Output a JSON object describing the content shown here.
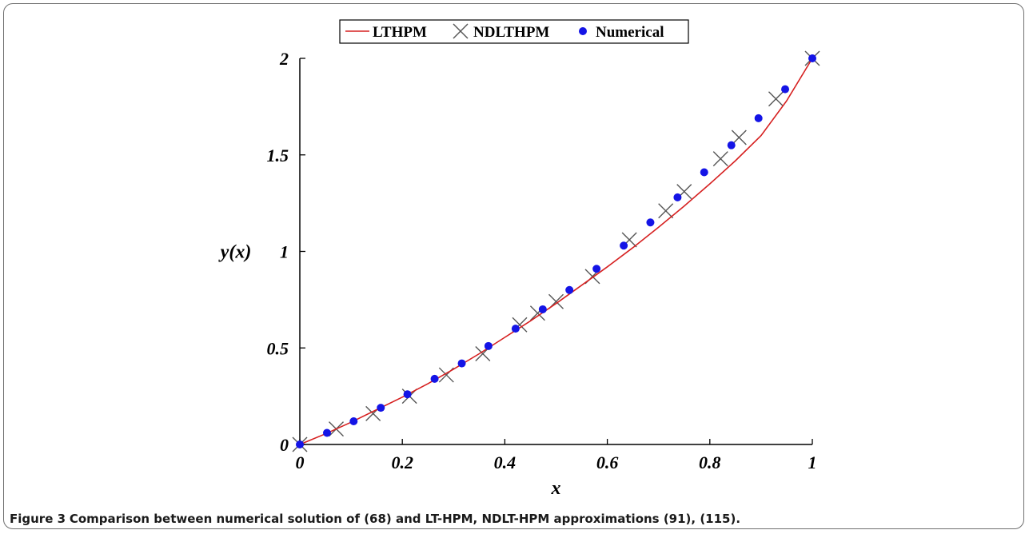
{
  "figure": {
    "caption_label": "Figure 3",
    "caption_text": "Comparison between numerical solution of (68) and LT-HPM, NDLT-HPM approximations (91), (115)."
  },
  "chart_data": {
    "type": "line",
    "xlabel": "x",
    "ylabel": "y(x)",
    "xlim": [
      0,
      1
    ],
    "ylim": [
      0,
      2
    ],
    "xticks": [
      0,
      0.2,
      0.4,
      0.6,
      0.8,
      1
    ],
    "yticks": [
      0,
      0.5,
      1,
      1.5,
      2
    ],
    "xtick_labels": [
      "0",
      "0.2",
      "0.4",
      "0.6",
      "0.8",
      "1"
    ],
    "ytick_labels": [
      "0",
      "0.5",
      "1",
      "1.5",
      "2"
    ],
    "legend_position": "top-center",
    "grid": false,
    "series": [
      {
        "name": "LTHPM",
        "style": "line",
        "color": "#d62020",
        "x": [
          0,
          0.05,
          0.1,
          0.15,
          0.2,
          0.25,
          0.3,
          0.35,
          0.4,
          0.45,
          0.5,
          0.55,
          0.6,
          0.65,
          0.7,
          0.75,
          0.8,
          0.85,
          0.9,
          0.95,
          1
        ],
        "y": [
          0,
          0.055,
          0.115,
          0.18,
          0.245,
          0.315,
          0.39,
          0.47,
          0.555,
          0.64,
          0.73,
          0.825,
          0.92,
          1.02,
          1.125,
          1.235,
          1.35,
          1.47,
          1.6,
          1.78,
          2.0
        ]
      },
      {
        "name": "NDLTHPM",
        "style": "cross",
        "color": "#555555",
        "x": [
          0,
          0.071,
          0.143,
          0.214,
          0.286,
          0.357,
          0.429,
          0.464,
          0.5,
          0.571,
          0.643,
          0.714,
          0.75,
          0.821,
          0.857,
          0.929,
          1
        ],
        "y": [
          0,
          0.08,
          0.16,
          0.25,
          0.36,
          0.47,
          0.62,
          0.68,
          0.74,
          0.87,
          1.06,
          1.21,
          1.31,
          1.48,
          1.59,
          1.79,
          2.0
        ]
      },
      {
        "name": "Numerical",
        "style": "point",
        "color": "#1414e6",
        "x": [
          0,
          0.053,
          0.105,
          0.158,
          0.21,
          0.263,
          0.316,
          0.368,
          0.421,
          0.474,
          0.526,
          0.579,
          0.632,
          0.684,
          0.737,
          0.789,
          0.842,
          0.895,
          0.947,
          1
        ],
        "y": [
          0,
          0.06,
          0.12,
          0.19,
          0.26,
          0.34,
          0.42,
          0.51,
          0.6,
          0.7,
          0.8,
          0.91,
          1.03,
          1.15,
          1.28,
          1.41,
          1.55,
          1.69,
          1.84,
          2.0
        ]
      }
    ]
  }
}
